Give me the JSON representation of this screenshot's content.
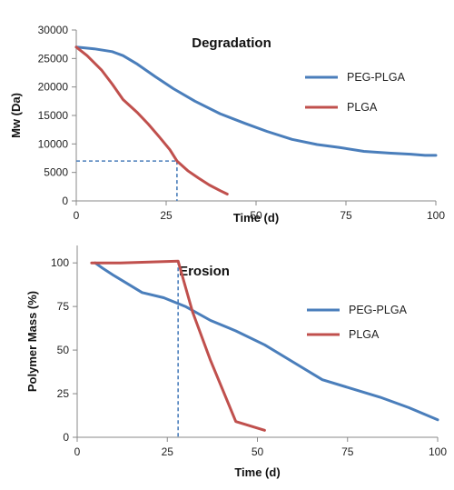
{
  "chart_data": [
    {
      "type": "line",
      "title": "Degradation",
      "xlabel": "Time (d)",
      "ylabel": "Mw (Da)",
      "xlim": [
        0,
        100
      ],
      "ylim": [
        0,
        30000
      ],
      "x_ticks": [
        0,
        25,
        50,
        75,
        100
      ],
      "y_ticks": [
        0,
        5000,
        10000,
        15000,
        20000,
        25000,
        30000
      ],
      "grid": false,
      "legend": "right",
      "series": [
        {
          "name": "PEG-PLGA",
          "color": "#4a7ebb",
          "points": [
            [
              0,
              27000
            ],
            [
              5,
              26700
            ],
            [
              10,
              26200
            ],
            [
              13,
              25500
            ],
            [
              17,
              24000
            ],
            [
              22,
              21800
            ],
            [
              27,
              19700
            ],
            [
              33,
              17500
            ],
            [
              40,
              15300
            ],
            [
              47,
              13600
            ],
            [
              53,
              12200
            ],
            [
              60,
              10800
            ],
            [
              67,
              9900
            ],
            [
              73,
              9400
            ],
            [
              80,
              8700
            ],
            [
              87,
              8400
            ],
            [
              93,
              8200
            ],
            [
              97,
              8000
            ],
            [
              100,
              8000
            ]
          ]
        },
        {
          "name": "PLGA",
          "color": "#c0504d",
          "points": [
            [
              0,
              27000
            ],
            [
              3,
              25500
            ],
            [
              7,
              23000
            ],
            [
              10,
              20500
            ],
            [
              13,
              17800
            ],
            [
              17,
              15500
            ],
            [
              20,
              13500
            ],
            [
              23,
              11300
            ],
            [
              26,
              9000
            ],
            [
              28,
              7000
            ],
            [
              31,
              5300
            ],
            [
              34,
              4000
            ],
            [
              37,
              2800
            ],
            [
              40,
              1800
            ],
            [
              42,
              1200
            ]
          ]
        }
      ],
      "reference_lines": [
        {
          "from": [
            0,
            7000
          ],
          "to": [
            28,
            7000
          ]
        },
        {
          "from": [
            28,
            7000
          ],
          "to": [
            28,
            0
          ]
        }
      ]
    },
    {
      "type": "line",
      "title": "Erosion",
      "xlabel": "Time (d)",
      "ylabel": "Polymer Mass (%)",
      "xlim": [
        0,
        100
      ],
      "ylim": [
        0,
        110
      ],
      "x_ticks": [
        0,
        25,
        50,
        75,
        100
      ],
      "y_ticks": [
        0,
        25,
        50,
        75,
        100
      ],
      "grid": false,
      "legend": "right",
      "series": [
        {
          "name": "PEG-PLGA",
          "color": "#4a7ebb",
          "points": [
            [
              5,
              100
            ],
            [
              7,
              97
            ],
            [
              10,
              93
            ],
            [
              14,
              88
            ],
            [
              18,
              83
            ],
            [
              24,
              80
            ],
            [
              30,
              75
            ],
            [
              37,
              67
            ],
            [
              44,
              61
            ],
            [
              52,
              53
            ],
            [
              60,
              43
            ],
            [
              68,
              33
            ],
            [
              76,
              28
            ],
            [
              84,
              23
            ],
            [
              92,
              17
            ],
            [
              100,
              10
            ]
          ]
        },
        {
          "name": "PLGA",
          "color": "#c0504d",
          "points": [
            [
              4,
              100
            ],
            [
              12,
              100
            ],
            [
              20,
              100.5
            ],
            [
              28,
              101
            ],
            [
              32,
              72
            ],
            [
              37,
              44
            ],
            [
              44,
              9
            ],
            [
              52,
              4
            ]
          ]
        }
      ],
      "reference_lines": [
        {
          "from": [
            28,
            101
          ],
          "to": [
            28,
            0
          ]
        }
      ]
    }
  ]
}
